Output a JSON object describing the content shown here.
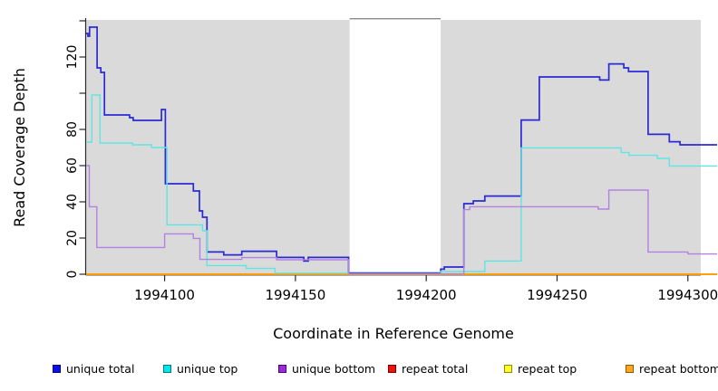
{
  "figure": {
    "x_title": "Coordinate in Reference Genome",
    "y_title": "Read Coverage Depth"
  },
  "axes": {
    "x": {
      "ticks": [
        {
          "coord": 1994100,
          "label": "1994100"
        },
        {
          "coord": 1994150,
          "label": "1994150"
        },
        {
          "coord": 1994200,
          "label": "1994200"
        },
        {
          "coord": 1994250,
          "label": "1994250"
        },
        {
          "coord": 1994300,
          "label": "1994300"
        }
      ]
    },
    "y": {
      "ticks": [
        {
          "value": 0,
          "label": "0"
        },
        {
          "value": 20,
          "label": "20"
        },
        {
          "value": 40,
          "label": "40"
        },
        {
          "value": 60,
          "label": "60"
        },
        {
          "value": 80,
          "label": "80"
        },
        {
          "value": 100,
          "label": ""
        },
        {
          "value": 120,
          "label": "120"
        },
        {
          "value": 140,
          "label": ""
        }
      ]
    }
  },
  "legend": {
    "items": [
      {
        "label": "unique total",
        "fill": "#0E0EE8",
        "border": "#000080"
      },
      {
        "label": "unique top",
        "fill": "#00E5EE",
        "border": "#007A7A"
      },
      {
        "label": "unique bottom",
        "fill": "#9C2BD6",
        "border": "#4B0082"
      },
      {
        "label": "repeat total",
        "fill": "#EE1111",
        "border": "#7A0000"
      },
      {
        "label": "repeat top",
        "fill": "#FFFF2E",
        "border": "#8B8B00"
      },
      {
        "label": "repeat bottom",
        "fill": "#FFA51E",
        "border": "#8B5A00"
      }
    ]
  },
  "chart_data": {
    "type": "line",
    "step": true,
    "title": "",
    "xlabel": "Coordinate in Reference Genome",
    "ylabel": "Read Coverage Depth",
    "xlim": [
      1994070,
      1994311
    ],
    "ylim": [
      0,
      140.5
    ],
    "grid": false,
    "plot_bg": "#DADADA",
    "missing_region": {
      "from": 1994170.7,
      "to": 1994205.5,
      "color": "#FFFFFF",
      "top_border": "#8A8A8A"
    },
    "draw_order": [
      "repeat total",
      "repeat top",
      "repeat bottom",
      "unique total",
      "unique top",
      "unique bottom"
    ],
    "series": [
      {
        "name": "unique total",
        "color": "#2A2AD4",
        "width": 1.7,
        "points": [
          [
            1994070.0,
            133
          ],
          [
            1994070.7,
            131.5
          ],
          [
            1994071.3,
            136.5
          ],
          [
            1994074.2,
            114
          ],
          [
            1994075.6,
            111.5
          ],
          [
            1994077.0,
            88
          ],
          [
            1994086.6,
            86.5
          ],
          [
            1994088.0,
            85
          ],
          [
            1994098.8,
            91
          ],
          [
            1994100.3,
            50
          ],
          [
            1994111.0,
            46
          ],
          [
            1994113.3,
            35
          ],
          [
            1994114.5,
            31.5
          ],
          [
            1994116.2,
            12.3
          ],
          [
            1994122.6,
            10.7
          ],
          [
            1994129.5,
            12.7
          ],
          [
            1994142.8,
            9.3
          ],
          [
            1994153.2,
            7.3
          ],
          [
            1994154.9,
            9.3
          ],
          [
            1994170.3,
            0.7
          ],
          [
            1994205.5,
            2.8
          ],
          [
            1994206.9,
            4
          ],
          [
            1994214.4,
            39
          ],
          [
            1994218.0,
            40.5
          ],
          [
            1994222.4,
            43.2
          ],
          [
            1994236.3,
            85.2
          ],
          [
            1994243.2,
            109
          ],
          [
            1994266.3,
            107.3
          ],
          [
            1994269.8,
            116.2
          ],
          [
            1994275.5,
            114
          ],
          [
            1994277.3,
            112
          ],
          [
            1994284.8,
            77.3
          ],
          [
            1994292.9,
            73.2
          ],
          [
            1994297.0,
            71.5
          ]
        ]
      },
      {
        "name": "unique top",
        "color": "#5FE5E2",
        "width": 1.4,
        "points": [
          [
            1994070.0,
            73
          ],
          [
            1994072.2,
            99
          ],
          [
            1994075.3,
            72.5
          ],
          [
            1994087.7,
            71.5
          ],
          [
            1994095.0,
            70
          ],
          [
            1994100.9,
            27.3
          ],
          [
            1994114.5,
            24
          ],
          [
            1994116.2,
            4.8
          ],
          [
            1994131.2,
            3.2
          ],
          [
            1994142.2,
            0.6
          ],
          [
            1994170.3,
            0.3
          ],
          [
            1994205.5,
            1.5
          ],
          [
            1994222.4,
            7.3
          ],
          [
            1994236.3,
            69.8
          ],
          [
            1994274.5,
            67.3
          ],
          [
            1994277.5,
            65.7
          ],
          [
            1994288.3,
            64
          ],
          [
            1994292.9,
            59.8
          ]
        ]
      },
      {
        "name": "unique bottom",
        "color": "#B183DF",
        "width": 1.4,
        "points": [
          [
            1994070.0,
            60
          ],
          [
            1994071.2,
            37.3
          ],
          [
            1994074.1,
            14.8
          ],
          [
            1994100.0,
            22.3
          ],
          [
            1994111.0,
            19.8
          ],
          [
            1994113.5,
            8.2
          ],
          [
            1994129.5,
            9.2
          ],
          [
            1994142.8,
            8
          ],
          [
            1994170.3,
            0.2
          ],
          [
            1994214.4,
            35.7
          ],
          [
            1994216.6,
            37.3
          ],
          [
            1994265.7,
            36
          ],
          [
            1994269.8,
            46.5
          ],
          [
            1994284.8,
            12.3
          ],
          [
            1994300.0,
            11.2
          ]
        ]
      },
      {
        "name": "repeat total",
        "color": "#E00000",
        "width": 1.4,
        "points": [
          [
            1994070,
            0
          ]
        ]
      },
      {
        "name": "repeat top",
        "color": "#FFEB00",
        "width": 1.4,
        "points": [
          [
            1994070,
            0
          ]
        ]
      },
      {
        "name": "repeat bottom",
        "color": "#FF9E00",
        "width": 1.8,
        "points": [
          [
            1994070,
            0
          ]
        ]
      }
    ]
  }
}
